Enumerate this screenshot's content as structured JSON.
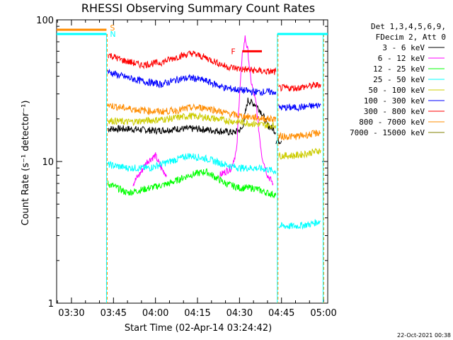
{
  "chart_data": {
    "type": "line",
    "title": "RHESSI Observing Summary Count Rates",
    "xlabel": "Start Time (02-Apr-14 03:24:42)",
    "ylabel": "Count Rate (s⁻¹ detector⁻¹)",
    "y_scale": "log",
    "ylim": [
      1,
      100
    ],
    "xlim": [
      "03:24:42",
      "05:01:30"
    ],
    "x_ticks": [
      "03:30",
      "03:45",
      "04:00",
      "04:15",
      "04:30",
      "04:45",
      "05:00"
    ],
    "y_ticks": [
      "1",
      "10",
      "100"
    ],
    "legend_header": [
      "Det 1,3,4,5,6,9,",
      "FDecim 2, Att 0"
    ],
    "legend_position": "right",
    "footer_date": "22-Oct-2021 00:38",
    "colors": {
      "axis": "#000000",
      "marker_line": "#00ffff",
      "marker_dash": "#ff8c00",
      "s_marker": "#ff8c00",
      "n_marker": "#00ffff",
      "flare_bar": "#ff0000"
    },
    "markers": {
      "s_label": "S",
      "n_label": "N",
      "flare_label": "F",
      "vertical_lines_at": [
        "03:42:30",
        "04:43:30",
        "04:59:50"
      ],
      "flare_bar_range": [
        "04:31",
        "04:38"
      ],
      "flare_bar_y": 60
    },
    "series": [
      {
        "name": "3 - 6 keV",
        "color": "#000000",
        "segments": [
          {
            "x": [
              "03:43",
              "03:50",
              "04:00",
              "04:08",
              "04:15",
              "04:22",
              "04:28",
              "04:31",
              "04:33",
              "04:36",
              "04:38",
              "04:40",
              "04:42",
              "04:43"
            ],
            "values": [
              17,
              17,
              16.5,
              17,
              17,
              16.5,
              16,
              17,
              27,
              25,
              22,
              18,
              17,
              16
            ]
          },
          {
            "x": [
              "04:43",
              "04:45"
            ],
            "values": [
              14,
              14
            ]
          }
        ]
      },
      {
        "name": "6 - 12 keV",
        "color": "#ff00ff",
        "segments": [
          {
            "x": [
              "03:52",
              "03:55",
              "03:57",
              "04:00",
              "04:02",
              "04:04"
            ],
            "values": [
              7,
              8.5,
              10,
              11,
              9,
              8
            ]
          },
          {
            "x": [
              "04:23",
              "04:27",
              "04:29",
              "04:30",
              "04:31",
              "04:32",
              "04:33",
              "04:34",
              "04:36",
              "04:37",
              "04:38",
              "04:40",
              "04:42"
            ],
            "values": [
              8,
              9,
              12,
              30,
              55,
              75,
              60,
              38,
              25,
              16,
              11,
              8,
              7
            ]
          }
        ]
      },
      {
        "name": "12 - 25 keV",
        "color": "#00ff00",
        "segments": [
          {
            "x": [
              "03:43",
              "03:50",
              "03:58",
              "04:05",
              "04:12",
              "04:18",
              "04:25",
              "04:30",
              "04:35",
              "04:40",
              "04:43"
            ],
            "values": [
              7,
              6,
              6.5,
              7,
              8,
              8.5,
              7,
              6.5,
              6.5,
              6,
              5.8
            ]
          }
        ]
      },
      {
        "name": "25 - 50 keV",
        "color": "#00ffff",
        "segments": [
          {
            "x": [
              "03:43",
              "03:50",
              "03:58",
              "04:05",
              "04:12",
              "04:18",
              "04:25",
              "04:30",
              "04:35",
              "04:40",
              "04:43"
            ],
            "values": [
              9.5,
              9,
              9,
              10,
              11,
              10.5,
              9.5,
              9,
              9,
              8.8,
              8.5
            ]
          },
          {
            "x": [
              "04:44",
              "04:50",
              "04:55",
              "04:59"
            ],
            "values": [
              3.5,
              3.5,
              3.6,
              3.8
            ]
          }
        ]
      },
      {
        "name": "50 - 100 keV",
        "color": "#cccc00",
        "segments": [
          {
            "x": [
              "03:43",
              "03:50",
              "03:58",
              "04:05",
              "04:12",
              "04:18",
              "04:25",
              "04:30",
              "04:35",
              "04:40",
              "04:43"
            ],
            "values": [
              19.5,
              19,
              19.5,
              20,
              21,
              20.5,
              19.5,
              19,
              18.5,
              18,
              18
            ]
          },
          {
            "x": [
              "04:44",
              "04:50",
              "04:55",
              "04:59"
            ],
            "values": [
              11,
              11,
              11.5,
              12
            ]
          }
        ]
      },
      {
        "name": "100 - 300 keV",
        "color": "#0000ff",
        "segments": [
          {
            "x": [
              "03:43",
              "03:48",
              "03:55",
              "04:02",
              "04:08",
              "04:13",
              "04:18",
              "04:25",
              "04:30",
              "04:35",
              "04:40",
              "04:43"
            ],
            "values": [
              43,
              40,
              37,
              35,
              38,
              39,
              37,
              33,
              32,
              31,
              31,
              31
            ]
          },
          {
            "x": [
              "04:44",
              "04:50",
              "04:55",
              "04:59"
            ],
            "values": [
              24,
              24,
              24.5,
              25
            ]
          }
        ]
      },
      {
        "name": "300 - 800 keV",
        "color": "#ff0000",
        "segments": [
          {
            "x": [
              "03:43",
              "03:48",
              "03:55",
              "04:02",
              "04:08",
              "04:13",
              "04:18",
              "04:25",
              "04:30",
              "04:35",
              "04:40",
              "04:43"
            ],
            "values": [
              57,
              52,
              48,
              50,
              55,
              58,
              54,
              47,
              45,
              44,
              43,
              43
            ]
          },
          {
            "x": [
              "04:44",
              "04:50",
              "04:55",
              "04:59"
            ],
            "values": [
              33,
              33,
              34,
              35
            ]
          }
        ]
      },
      {
        "name": "800 - 7000 keV",
        "color": "#ff8c00",
        "segments": [
          {
            "x": [
              "03:43",
              "03:48",
              "03:55",
              "04:02",
              "04:08",
              "04:13",
              "04:18",
              "04:25",
              "04:30",
              "04:35",
              "04:40",
              "04:43"
            ],
            "values": [
              25,
              24,
              23,
              22.5,
              23,
              24,
              24,
              22,
              21,
              20.5,
              20,
              20
            ]
          },
          {
            "x": [
              "04:44",
              "04:50",
              "04:55",
              "04:59"
            ],
            "values": [
              15,
              15,
              15.5,
              16
            ]
          }
        ]
      },
      {
        "name": "7000 - 15000 keV",
        "color": "#808000",
        "segments": []
      }
    ]
  }
}
